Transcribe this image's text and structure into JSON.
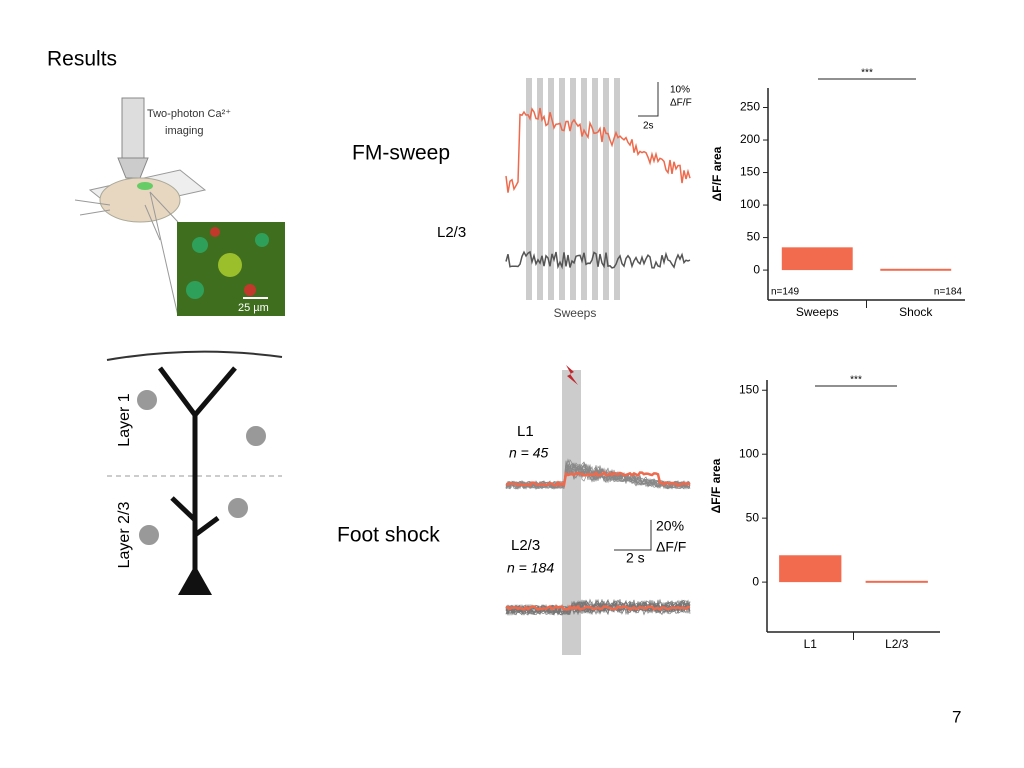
{
  "title": "Results",
  "labels": {
    "fm_sweep": "FM-sweep",
    "l23": "L2/3",
    "foot_shock": "Foot shock",
    "page_number": "7"
  },
  "imaging": {
    "caption": "Two-photon Ca²⁺",
    "caption2": "imaging",
    "scale": "25 µm"
  },
  "sweep_traces": {
    "scale_y": "10%",
    "scale_unit": "ΔF/F",
    "scale_x": "2s",
    "stimulus": "Sweeps"
  },
  "neuron": {
    "layer1": "Layer 1",
    "layer23": "Layer 2/3"
  },
  "shock_traces": {
    "l1": "L1",
    "l1_n": "n = 45",
    "l23": "L2/3",
    "l23_n": "n = 184",
    "scale_y": "20%",
    "scale_unit": "ΔF/F",
    "scale_x": "2 s"
  },
  "chart_data": [
    {
      "type": "bar",
      "ylabel": "ΔF/F area",
      "significance": "***",
      "categories": [
        "Sweeps",
        "Shock"
      ],
      "values": [
        35,
        2
      ],
      "color": "#f26b4f",
      "ylim": [
        -46,
        280
      ],
      "yticks": [
        0,
        50,
        100,
        150,
        200,
        250
      ],
      "annotations": [
        "n=149",
        "n=184"
      ]
    },
    {
      "type": "bar",
      "ylabel": "ΔF/F area",
      "significance": "***",
      "categories": [
        "L1",
        "L2/3"
      ],
      "values": [
        21,
        1
      ],
      "color": "#f26b4f",
      "ylim": [
        -39,
        158
      ],
      "yticks": [
        0,
        50,
        100,
        150
      ]
    }
  ]
}
